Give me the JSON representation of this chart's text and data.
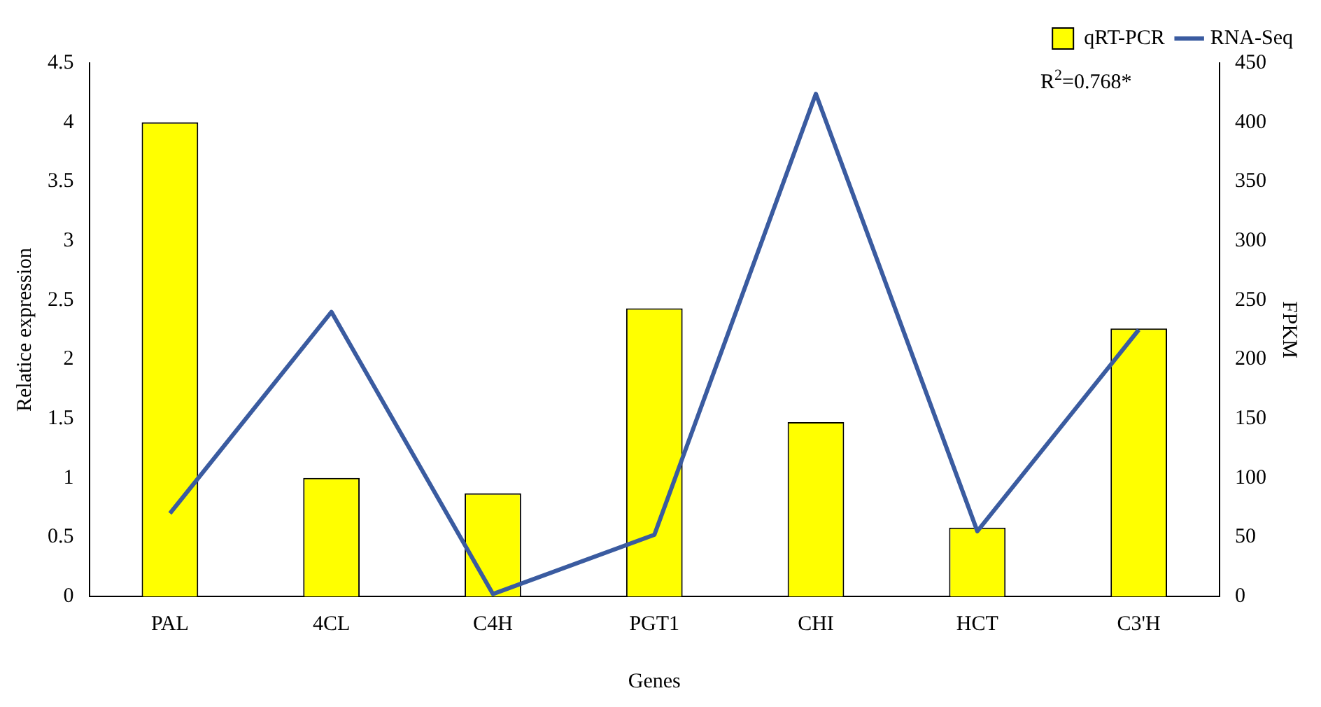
{
  "chart_data": {
    "type": "bar",
    "xlabel": "Genes",
    "ylabel": "Relatice expression",
    "y2label": "FPKM",
    "categories": [
      "PAL",
      "4CL",
      "C4H",
      "PGT1",
      "CHI",
      "HCT",
      "C3'H"
    ],
    "series": [
      {
        "name": "qRT-PCR",
        "color": "#ffff00",
        "values": [
          4.0,
          1.0,
          0.87,
          2.43,
          1.47,
          0.58,
          2.26
        ]
      },
      {
        "name": "RNA-Seq",
        "type": "line",
        "axis": "y2",
        "color": "#3a5ba0",
        "values": [
          70,
          240,
          2,
          52,
          424,
          55,
          225
        ]
      }
    ],
    "ylim": [
      0,
      4.5
    ],
    "yticks": [
      0,
      0.5,
      1,
      1.5,
      2,
      2.5,
      3,
      3.5,
      4,
      4.5
    ],
    "y2lim": [
      0,
      450
    ],
    "y2ticks": [
      0,
      50,
      100,
      150,
      200,
      250,
      300,
      350,
      400,
      450
    ],
    "legend": "top right",
    "grid": false,
    "marker": "none",
    "annotations": [
      "R$^{2}$=0.768*"
    ]
  }
}
